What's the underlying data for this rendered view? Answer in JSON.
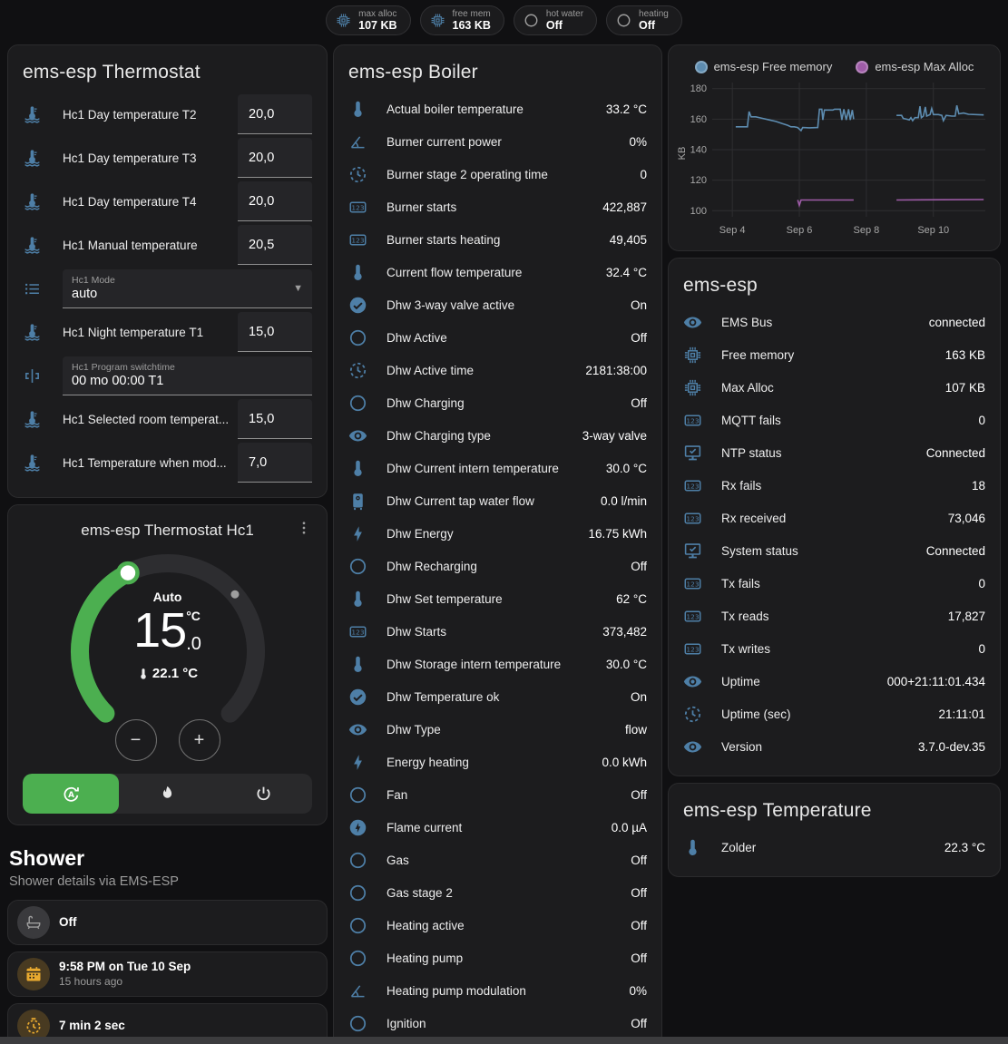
{
  "header_chips": [
    {
      "icon": "memory",
      "label": "max alloc",
      "value": "107 KB",
      "icon_color": "blue"
    },
    {
      "icon": "memory",
      "label": "free mem",
      "value": "163 KB",
      "icon_color": "blue"
    },
    {
      "icon": "circle",
      "label": "hot water",
      "value": "Off",
      "icon_color": "gray"
    },
    {
      "icon": "circle",
      "label": "heating",
      "value": "Off",
      "icon_color": "gray"
    }
  ],
  "thermostat_card": {
    "title": "ems-esp Thermostat",
    "rows": [
      {
        "kind": "number",
        "icon": "thermometer-water",
        "label": "Hc1 Day temperature T2",
        "value": "20,0"
      },
      {
        "kind": "number",
        "icon": "thermometer-water",
        "label": "Hc1 Day temperature T3",
        "value": "20,0"
      },
      {
        "kind": "number",
        "icon": "thermometer-water",
        "label": "Hc1 Day temperature T4",
        "value": "20,0"
      },
      {
        "kind": "number",
        "icon": "thermometer-water",
        "label": "Hc1 Manual temperature",
        "value": "20,5"
      },
      {
        "kind": "select",
        "icon": "format-list",
        "label": "Hc1 Mode",
        "value": "auto"
      },
      {
        "kind": "number",
        "icon": "thermometer-water",
        "label": "Hc1 Night temperature T1",
        "value": "15,0"
      },
      {
        "kind": "text",
        "icon": "pipe",
        "label": "Hc1 Program switchtime",
        "value": "00 mo 00:00 T1"
      },
      {
        "kind": "number",
        "icon": "thermometer-water",
        "label": "Hc1 Selected room temperat...",
        "value": "15,0"
      },
      {
        "kind": "number",
        "icon": "thermometer-water",
        "label": "Hc1 Temperature when mod...",
        "value": "7,0"
      }
    ]
  },
  "dial_card": {
    "title": "ems-esp Thermostat Hc1",
    "mode_label": "Auto",
    "target_int": "15",
    "target_dec": ".0",
    "unit": "°C",
    "current_label": "22.1 °C",
    "min": 5,
    "max": 30,
    "target": 15,
    "current": 22.1,
    "accent": "#4caf50",
    "modes": [
      {
        "icon": "thermostat-auto",
        "active": true
      },
      {
        "icon": "fire",
        "active": false
      },
      {
        "icon": "power",
        "active": false
      }
    ]
  },
  "shower": {
    "title": "Shower",
    "subtitle": "Shower details via EMS-ESP",
    "tiles": [
      {
        "icon": "bathtub",
        "chip": "graybg",
        "icon_color": "gray",
        "primary": "Off",
        "secondary": ""
      },
      {
        "icon": "calendar",
        "chip": "amberbg",
        "icon_color": "amber",
        "primary": "9:58 PM on Tue 10 Sep",
        "secondary": "15 hours ago"
      },
      {
        "icon": "timer",
        "chip": "amberbg",
        "icon_color": "amber",
        "primary": "7 min 2 sec",
        "secondary": ""
      }
    ],
    "partial_tile_icon": "snowflake-alert"
  },
  "boiler_card": {
    "title": "ems-esp Boiler",
    "rows": [
      {
        "icon": "thermometer",
        "label": "Actual boiler temperature",
        "value": "33.2 °C"
      },
      {
        "icon": "angle-acute",
        "label": "Burner current power",
        "value": "0%"
      },
      {
        "icon": "progress-clock",
        "label": "Burner stage 2 operating time",
        "value": "0"
      },
      {
        "icon": "counter",
        "label": "Burner starts",
        "value": "422,887"
      },
      {
        "icon": "counter",
        "label": "Burner starts heating",
        "value": "49,405"
      },
      {
        "icon": "thermometer",
        "label": "Current flow temperature",
        "value": "32.4 °C"
      },
      {
        "icon": "check-circle",
        "label": "Dhw 3-way valve active",
        "value": "On"
      },
      {
        "icon": "circle",
        "label": "Dhw Active",
        "value": "Off"
      },
      {
        "icon": "progress-clock",
        "label": "Dhw Active time",
        "value": "2181:38:00"
      },
      {
        "icon": "circle",
        "label": "Dhw Charging",
        "value": "Off"
      },
      {
        "icon": "eye",
        "label": "Dhw Charging type",
        "value": "3-way valve"
      },
      {
        "icon": "thermometer",
        "label": "Dhw Current intern temperature",
        "value": "30.0 °C"
      },
      {
        "icon": "water-boiler",
        "label": "Dhw Current tap water flow",
        "value": "0.0 l/min"
      },
      {
        "icon": "flash",
        "label": "Dhw Energy",
        "value": "16.75 kWh"
      },
      {
        "icon": "circle",
        "label": "Dhw Recharging",
        "value": "Off"
      },
      {
        "icon": "thermometer",
        "label": "Dhw Set temperature",
        "value": "62 °C"
      },
      {
        "icon": "counter",
        "label": "Dhw Starts",
        "value": "373,482"
      },
      {
        "icon": "thermometer",
        "label": "Dhw Storage intern temperature",
        "value": "30.0 °C"
      },
      {
        "icon": "check-circle",
        "label": "Dhw Temperature ok",
        "value": "On"
      },
      {
        "icon": "eye",
        "label": "Dhw Type",
        "value": "flow"
      },
      {
        "icon": "flash",
        "label": "Energy heating",
        "value": "0.0 kWh"
      },
      {
        "icon": "circle",
        "label": "Fan",
        "value": "Off"
      },
      {
        "icon": "flash-circle",
        "label": "Flame current",
        "value": "0.0 µA"
      },
      {
        "icon": "circle",
        "label": "Gas",
        "value": "Off"
      },
      {
        "icon": "circle",
        "label": "Gas stage 2",
        "value": "Off"
      },
      {
        "icon": "circle",
        "label": "Heating active",
        "value": "Off"
      },
      {
        "icon": "circle",
        "label": "Heating pump",
        "value": "Off"
      },
      {
        "icon": "angle-acute",
        "label": "Heating pump modulation",
        "value": "0%"
      },
      {
        "icon": "circle",
        "label": "Ignition",
        "value": "Off"
      }
    ]
  },
  "system_card": {
    "title": "ems-esp",
    "rows": [
      {
        "icon": "eye",
        "label": "EMS Bus",
        "value": "connected"
      },
      {
        "icon": "memory",
        "label": "Free memory",
        "value": "163 KB"
      },
      {
        "icon": "memory",
        "label": "Max Alloc",
        "value": "107 KB"
      },
      {
        "icon": "counter",
        "label": "MQTT fails",
        "value": "0"
      },
      {
        "icon": "monitor-check",
        "label": "NTP status",
        "value": "Connected"
      },
      {
        "icon": "counter",
        "label": "Rx fails",
        "value": "18"
      },
      {
        "icon": "counter",
        "label": "Rx received",
        "value": "73,046"
      },
      {
        "icon": "monitor-check",
        "label": "System status",
        "value": "Connected"
      },
      {
        "icon": "counter",
        "label": "Tx fails",
        "value": "0"
      },
      {
        "icon": "counter",
        "label": "Tx reads",
        "value": "17,827"
      },
      {
        "icon": "counter",
        "label": "Tx writes",
        "value": "0"
      },
      {
        "icon": "eye",
        "label": "Uptime",
        "value": "000+21:11:01.434"
      },
      {
        "icon": "progress-clock",
        "label": "Uptime (sec)",
        "value": "21:11:01"
      },
      {
        "icon": "eye",
        "label": "Version",
        "value": "3.7.0-dev.35"
      }
    ]
  },
  "temperature_card": {
    "title": "ems-esp Temperature",
    "rows": [
      {
        "icon": "thermometer",
        "label": "Zolder",
        "value": "22.3 °C"
      }
    ]
  },
  "chart_data": {
    "type": "line",
    "title": "",
    "ylabel": "KB",
    "yticks": [
      100,
      120,
      140,
      160,
      180
    ],
    "ylim": [
      96,
      184
    ],
    "xlim": [
      3.4,
      11.55
    ],
    "xticks": [
      {
        "x": 4,
        "label": "Sep 4"
      },
      {
        "x": 6,
        "label": "Sep 6"
      },
      {
        "x": 8,
        "label": "Sep 8"
      },
      {
        "x": 10,
        "label": "Sep 10"
      }
    ],
    "grid": true,
    "legend_position": "top",
    "series": [
      {
        "name": "ems-esp Free memory",
        "color": "#5d8cb0",
        "segments": [
          [
            [
              4.1,
              155
            ],
            [
              4.45,
              155
            ],
            [
              4.5,
              165
            ],
            [
              4.56,
              161.5
            ],
            [
              4.7,
              161.5
            ],
            [
              4.9,
              160.5
            ],
            [
              5.1,
              159.5
            ],
            [
              5.3,
              158.5
            ],
            [
              5.5,
              157
            ],
            [
              5.65,
              156
            ],
            [
              5.75,
              155
            ],
            [
              5.85,
              155
            ],
            [
              5.95,
              154.5
            ],
            [
              6.05,
              152.5
            ],
            [
              6.1,
              154.5
            ],
            [
              6.3,
              154.3
            ],
            [
              6.55,
              154.5
            ],
            [
              6.6,
              166.5
            ],
            [
              6.67,
              166.5
            ],
            [
              6.7,
              159.5
            ],
            [
              6.75,
              166
            ],
            [
              7.0,
              166
            ],
            [
              7.05,
              166.5
            ],
            [
              7.22,
              166.5
            ],
            [
              7.27,
              159.5
            ],
            [
              7.33,
              166.5
            ],
            [
              7.4,
              159.5
            ],
            [
              7.47,
              166.5
            ],
            [
              7.52,
              159.5
            ],
            [
              7.58,
              166
            ],
            [
              7.62,
              160
            ]
          ],
          [
            [
              8.9,
              162.5
            ],
            [
              9.05,
              162.5
            ],
            [
              9.1,
              160.5
            ],
            [
              9.2,
              160
            ],
            [
              9.28,
              159.5
            ],
            [
              9.33,
              161
            ],
            [
              9.38,
              159
            ],
            [
              9.45,
              161
            ],
            [
              9.55,
              161
            ],
            [
              9.6,
              168.5
            ],
            [
              9.64,
              161
            ],
            [
              9.7,
              162
            ],
            [
              9.76,
              168
            ],
            [
              9.8,
              162
            ],
            [
              9.9,
              163
            ],
            [
              9.95,
              167
            ],
            [
              10.0,
              163
            ],
            [
              10.15,
              163
            ],
            [
              10.25,
              162.5
            ],
            [
              10.3,
              159
            ],
            [
              10.38,
              162.5
            ],
            [
              10.55,
              162
            ],
            [
              10.65,
              162
            ],
            [
              10.7,
              169
            ],
            [
              10.76,
              163.5
            ],
            [
              10.9,
              164
            ],
            [
              11.05,
              163.2
            ],
            [
              11.5,
              162.8
            ]
          ]
        ]
      },
      {
        "name": "ems-esp Max Alloc",
        "color": "#9f5ca8",
        "segments": [
          [
            [
              5.95,
              107
            ],
            [
              6.0,
              103.5
            ],
            [
              6.05,
              107
            ],
            [
              7.62,
              107
            ]
          ],
          [
            [
              8.9,
              107
            ],
            [
              11.5,
              107.3
            ]
          ]
        ]
      }
    ]
  }
}
